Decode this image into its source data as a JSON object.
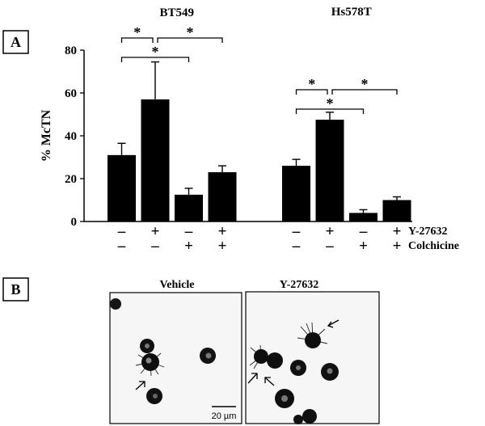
{
  "chart_data": {
    "type": "bar",
    "panel_label": "A",
    "ylabel": "% McTN",
    "ylim": [
      0,
      80
    ],
    "yticks": [
      0,
      20,
      40,
      60,
      80
    ],
    "groups": [
      {
        "name": "BT549",
        "values": [
          31,
          57,
          12.5,
          23
        ],
        "errors": [
          5.5,
          17.5,
          3,
          3
        ],
        "y27632": [
          "–",
          "+",
          "–",
          "+"
        ],
        "colchicine": [
          "–",
          "–",
          "+",
          "+"
        ],
        "significance": [
          {
            "from": 0,
            "to": 1,
            "label": "*"
          },
          {
            "from": 1,
            "to": 3,
            "label": "*"
          },
          {
            "from": 0,
            "to": 2,
            "label": "*"
          }
        ]
      },
      {
        "name": "Hs578T",
        "values": [
          26,
          47.5,
          4,
          10
        ],
        "errors": [
          3,
          3.5,
          1.5,
          1.5
        ],
        "y27632": [
          "–",
          "+",
          "–",
          "+"
        ],
        "colchicine": [
          "–",
          "–",
          "+",
          "+"
        ],
        "significance": [
          {
            "from": 0,
            "to": 1,
            "label": "*"
          },
          {
            "from": 1,
            "to": 3,
            "label": "*"
          },
          {
            "from": 0,
            "to": 2,
            "label": "*"
          }
        ]
      }
    ],
    "row_labels": [
      "Y-27632",
      "Colchicine"
    ]
  },
  "panel_b": {
    "label": "B",
    "images": [
      {
        "title": "Vehicle",
        "scale_bar": "20 µm"
      },
      {
        "title": "Y-27632"
      }
    ]
  }
}
